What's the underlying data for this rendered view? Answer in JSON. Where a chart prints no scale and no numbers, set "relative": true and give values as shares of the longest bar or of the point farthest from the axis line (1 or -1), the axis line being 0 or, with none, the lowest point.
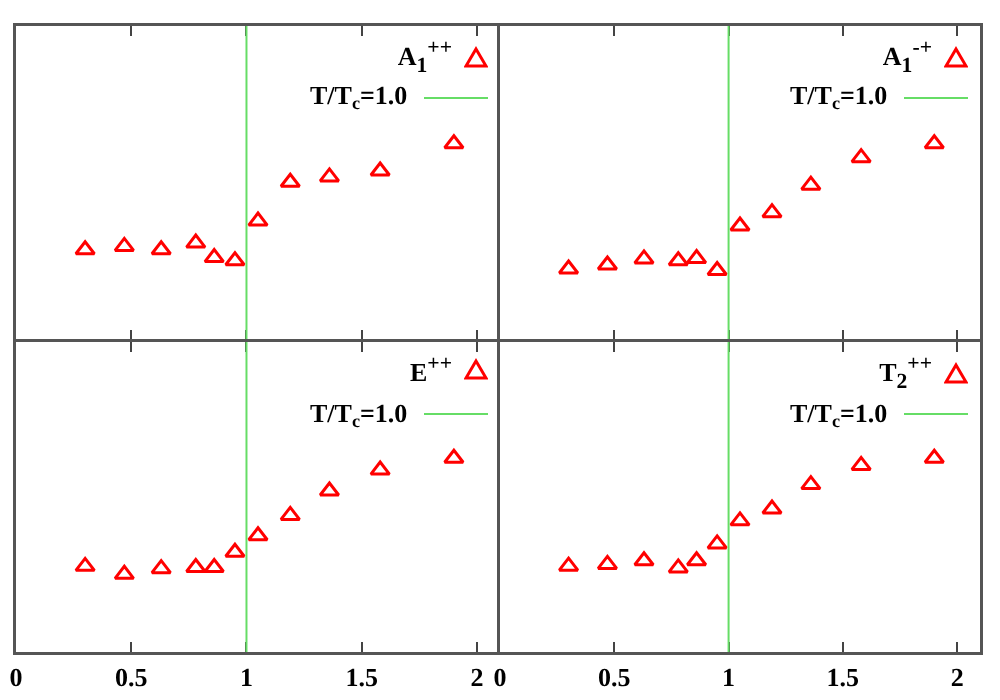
{
  "chart_data": [
    {
      "type": "scatter",
      "relative": true,
      "marker": "triangle",
      "grid": false,
      "legend": "top right",
      "tick_labels": false,
      "xlim": [
        0,
        2.1
      ],
      "xticks": [
        0,
        0.5,
        1,
        1.5,
        2
      ],
      "x": [
        0.3,
        0.47,
        0.63,
        0.78,
        0.86,
        0.95,
        1.05,
        1.19,
        1.36,
        1.58,
        1.9
      ],
      "series": [
        {
          "name": "A$_{1}$$^{++}$",
          "color": "#ff0000",
          "values": [
            0.46,
            0.477,
            0.46,
            0.494,
            0.42,
            0.404,
            0.606,
            0.804,
            0.831,
            0.861,
            1
          ]
        }
      ],
      "ref_lines": [
        {
          "axis": "x",
          "value": 1,
          "label": "T/T$_{c}$=1.0",
          "color": "#66dd66"
        }
      ]
    },
    {
      "type": "scatter",
      "relative": true,
      "marker": "triangle",
      "grid": false,
      "legend": "top right",
      "tick_labels": false,
      "xlim": [
        0,
        2.1
      ],
      "xticks": [
        0,
        0.5,
        1,
        1.5,
        2
      ],
      "x": [
        0.3,
        0.47,
        0.63,
        0.78,
        0.86,
        0.95,
        1.05,
        1.19,
        1.36,
        1.58,
        1.9
      ],
      "series": [
        {
          "name": "A$_{1}$$^{-+}$",
          "color": "#ff0000",
          "values": [
            0.362,
            0.382,
            0.413,
            0.404,
            0.415,
            0.354,
            0.581,
            0.649,
            0.789,
            0.929,
            1
          ]
        }
      ],
      "ref_lines": [
        {
          "axis": "x",
          "value": 1,
          "label": "T/T$_{c}$=1.0",
          "color": "#66dd66"
        }
      ]
    },
    {
      "type": "scatter",
      "relative": true,
      "marker": "triangle",
      "grid": false,
      "legend": "top right",
      "tick_labels": "x",
      "xlim": [
        0,
        2.1
      ],
      "xticks": [
        0,
        0.5,
        1,
        1.5,
        2
      ],
      "x": [
        0.3,
        0.47,
        0.63,
        0.78,
        0.86,
        0.95,
        1.05,
        1.19,
        1.36,
        1.58,
        1.9
      ],
      "series": [
        {
          "name": "E$^{++}$",
          "color": "#ff0000",
          "values": [
            0.442,
            0.401,
            0.43,
            0.436,
            0.436,
            0.515,
            0.6,
            0.705,
            0.831,
            0.939,
            1
          ]
        }
      ],
      "ref_lines": [
        {
          "axis": "x",
          "value": 1,
          "label": "T/T$_{c}$=1.0",
          "color": "#66dd66"
        }
      ]
    },
    {
      "type": "scatter",
      "relative": true,
      "marker": "triangle",
      "grid": false,
      "legend": "top right",
      "tick_labels": "x",
      "xlim": [
        0,
        2.1
      ],
      "xticks": [
        0,
        0.5,
        1,
        1.5,
        2
      ],
      "x": [
        0.3,
        0.47,
        0.63,
        0.78,
        0.86,
        0.95,
        1.05,
        1.19,
        1.36,
        1.58,
        1.9
      ],
      "series": [
        {
          "name": "T$_{2}$$^{++}$",
          "color": "#ff0000",
          "values": [
            0.443,
            0.452,
            0.471,
            0.434,
            0.471,
            0.558,
            0.677,
            0.738,
            0.864,
            0.963,
            1
          ]
        }
      ],
      "ref_lines": [
        {
          "axis": "x",
          "value": 1,
          "label": "T/T$_{c}$=1.0",
          "color": "#66dd66"
        }
      ]
    }
  ]
}
